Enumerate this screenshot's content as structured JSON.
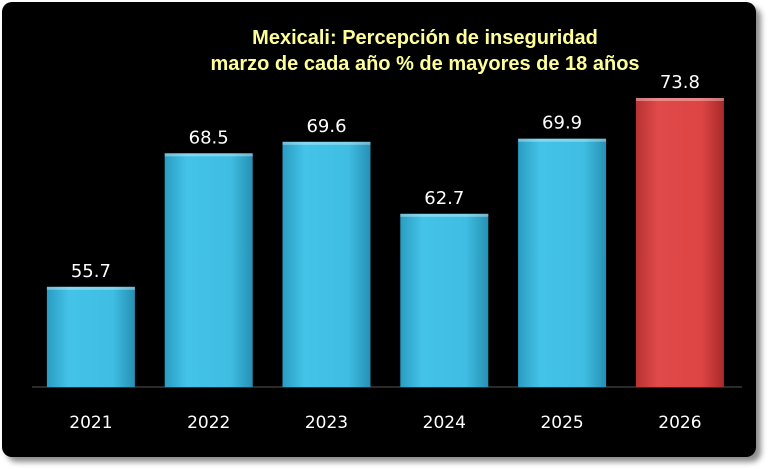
{
  "chart_data": {
    "type": "bar",
    "title_lines": [
      "Mexicali: Percepción de inseguridad",
      "marzo de cada año %  de mayores de 18 años"
    ],
    "categories": [
      "2021",
      "2022",
      "2023",
      "2024",
      "2025",
      "2026"
    ],
    "values": [
      55.7,
      68.5,
      69.6,
      62.7,
      69.9,
      73.8
    ],
    "data_labels": [
      "55.7",
      "68.5",
      "69.6",
      "62.7",
      "69.9",
      "73.8"
    ],
    "ylim": [
      46.1,
      73.8
    ],
    "grid": false,
    "legend": "none",
    "colors": {
      "background": "#000000",
      "title": "#ffff99",
      "bar": "#3fbde2",
      "highlight_bar": "#dd4444",
      "text": "#ffffff"
    },
    "highlight_index": 5
  }
}
